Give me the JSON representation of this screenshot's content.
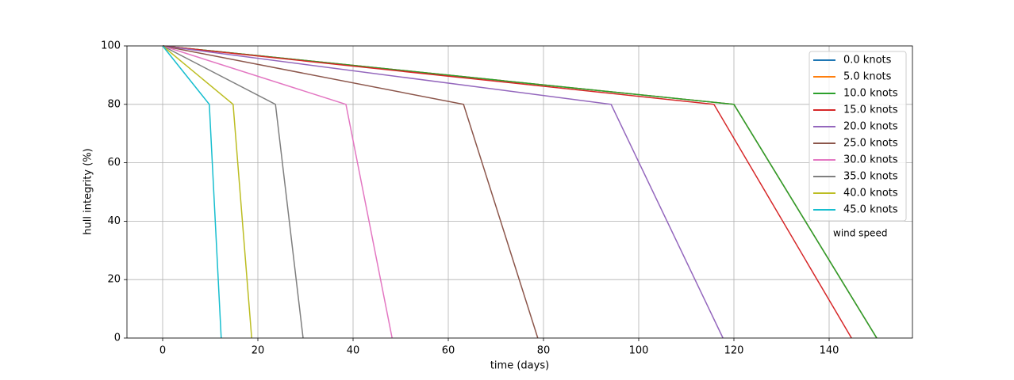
{
  "chart_data": {
    "type": "line",
    "xlabel": "time (days)",
    "ylabel": "hull integrity (%)",
    "annotation": "wind speed",
    "xlim": [
      -7.5,
      157.5
    ],
    "ylim": [
      0,
      100
    ],
    "xticks": [
      0,
      20,
      40,
      60,
      80,
      100,
      120,
      140
    ],
    "yticks": [
      0,
      20,
      40,
      60,
      80,
      100
    ],
    "grid": true,
    "legend": "upper right",
    "series": [
      {
        "name": "0.0 knots",
        "color": "#1f77b4",
        "x": [
          0,
          120,
          150
        ],
        "values": [
          100,
          80,
          0
        ]
      },
      {
        "name": "5.0 knots",
        "color": "#ff7f0e",
        "x": [
          0,
          120,
          150
        ],
        "values": [
          100,
          80,
          0
        ]
      },
      {
        "name": "10.0 knots",
        "color": "#2ca02c",
        "x": [
          0,
          120,
          150
        ],
        "values": [
          100,
          80,
          0
        ]
      },
      {
        "name": "15.0 knots",
        "color": "#d62728",
        "x": [
          0,
          115.8,
          144.7
        ],
        "values": [
          100,
          80,
          0
        ]
      },
      {
        "name": "20.0 knots",
        "color": "#9467bd",
        "x": [
          0,
          94.2,
          117.7
        ],
        "values": [
          100,
          80,
          0
        ]
      },
      {
        "name": "25.0 knots",
        "color": "#8c564b",
        "x": [
          0,
          63.2,
          78.8
        ],
        "values": [
          100,
          80,
          0
        ]
      },
      {
        "name": "30.0 knots",
        "color": "#e377c2",
        "x": [
          0,
          38.5,
          48.2
        ],
        "values": [
          100,
          80,
          0
        ]
      },
      {
        "name": "35.0 knots",
        "color": "#7f7f7f",
        "x": [
          0,
          23.7,
          29.5
        ],
        "values": [
          100,
          80,
          0
        ]
      },
      {
        "name": "40.0 knots",
        "color": "#bcbd22",
        "x": [
          0,
          14.8,
          18.7
        ],
        "values": [
          100,
          80,
          0
        ]
      },
      {
        "name": "45.0 knots",
        "color": "#17becf",
        "x": [
          0,
          9.8,
          12.3
        ],
        "values": [
          100,
          80,
          0
        ]
      }
    ]
  }
}
